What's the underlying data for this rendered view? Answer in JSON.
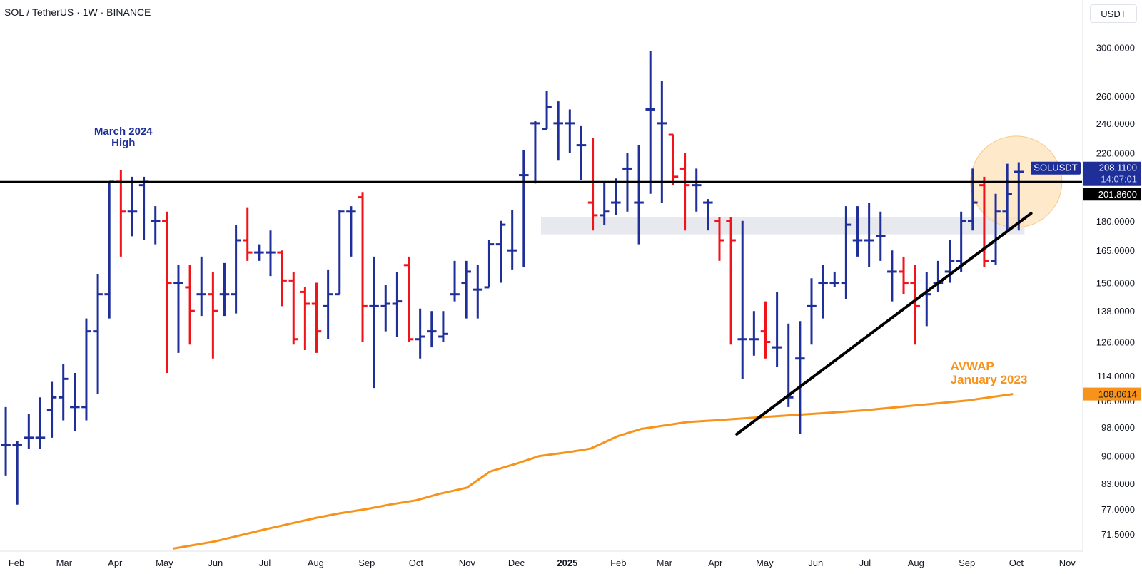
{
  "chart_data": {
    "type": "ohlc",
    "title": "SOL / TetherUS · 1W · BINANCE",
    "unit": "USDT",
    "y_scale": "log",
    "ylim": [
      68,
      320
    ],
    "xlim": [
      "2024-01-22",
      "2025-11-10"
    ],
    "y_ticks": [
      "300.0000",
      "260.0000",
      "240.0000",
      "220.0000",
      "180.0000",
      "165.0000",
      "150.0000",
      "138.0000",
      "126.0000",
      "114.0000",
      "106.0000",
      "98.0000",
      "90.0000",
      "83.0000",
      "77.0000",
      "71.5000"
    ],
    "x_ticks": [
      {
        "label": "Feb",
        "date": "2024-02-01"
      },
      {
        "label": "Mar",
        "date": "2024-03-01"
      },
      {
        "label": "Apr",
        "date": "2024-04-01"
      },
      {
        "label": "May",
        "date": "2024-05-01"
      },
      {
        "label": "Jun",
        "date": "2024-06-01"
      },
      {
        "label": "Jul",
        "date": "2024-07-01"
      },
      {
        "label": "Aug",
        "date": "2024-08-01"
      },
      {
        "label": "Sep",
        "date": "2024-09-01"
      },
      {
        "label": "Oct",
        "date": "2024-10-01"
      },
      {
        "label": "Nov",
        "date": "2024-11-01"
      },
      {
        "label": "Dec",
        "date": "2024-12-01"
      },
      {
        "label": "2025",
        "date": "2025-01-01",
        "bold": true
      },
      {
        "label": "Feb",
        "date": "2025-02-01"
      },
      {
        "label": "Mar",
        "date": "2025-03-01"
      },
      {
        "label": "Apr",
        "date": "2025-04-01"
      },
      {
        "label": "May",
        "date": "2025-05-01"
      },
      {
        "label": "Jun",
        "date": "2025-06-01"
      },
      {
        "label": "Jul",
        "date": "2025-07-01"
      },
      {
        "label": "Aug",
        "date": "2025-08-01"
      },
      {
        "label": "Sep",
        "date": "2025-09-01"
      },
      {
        "label": "Oct",
        "date": "2025-10-01"
      },
      {
        "label": "Nov",
        "date": "2025-11-01"
      }
    ],
    "colors": {
      "up": "#1f2f9a",
      "down": "#f0141a",
      "avwap": "#f7931a",
      "level": "#000000",
      "trendline": "#000000",
      "zone": "#e8e9ee",
      "highlight": "#fde2b8",
      "highlight_stroke": "#f5c98a"
    },
    "bars": [
      {
        "date": "2024-01-22",
        "o": 93,
        "h": 104,
        "l": 85,
        "c": 93
      },
      {
        "date": "2024-01-29",
        "o": 93,
        "h": 94,
        "l": 78,
        "c": 93
      },
      {
        "date": "2024-02-05",
        "o": 95,
        "h": 102,
        "l": 92,
        "c": 95
      },
      {
        "date": "2024-02-12",
        "o": 95,
        "h": 107,
        "l": 92,
        "c": 95
      },
      {
        "date": "2024-02-19",
        "o": 103,
        "h": 112,
        "l": 95,
        "c": 107
      },
      {
        "date": "2024-02-26",
        "o": 107,
        "h": 118,
        "l": 100,
        "c": 113
      },
      {
        "date": "2024-03-04",
        "o": 104,
        "h": 115,
        "l": 97,
        "c": 104
      },
      {
        "date": "2024-03-11",
        "o": 104,
        "h": 135,
        "l": 100,
        "c": 130
      },
      {
        "date": "2024-03-18",
        "o": 130,
        "h": 154,
        "l": 108,
        "c": 145
      },
      {
        "date": "2024-03-25",
        "o": 145,
        "h": 202,
        "l": 135,
        "c": 202
      },
      {
        "date": "2024-04-01",
        "o": 202,
        "h": 209,
        "l": 162,
        "c": 185
      },
      {
        "date": "2024-04-08",
        "o": 185,
        "h": 205,
        "l": 172,
        "c": 185
      },
      {
        "date": "2024-04-15",
        "o": 200,
        "h": 205,
        "l": 170,
        "c": 202
      },
      {
        "date": "2024-04-22",
        "o": 180,
        "h": 188,
        "l": 168,
        "c": 180
      },
      {
        "date": "2024-04-29",
        "o": 180,
        "h": 185,
        "l": 115,
        "c": 150
      },
      {
        "date": "2024-05-06",
        "o": 150,
        "h": 158,
        "l": 122,
        "c": 150
      },
      {
        "date": "2024-05-13",
        "o": 148,
        "h": 158,
        "l": 125,
        "c": 138
      },
      {
        "date": "2024-05-20",
        "o": 145,
        "h": 162,
        "l": 136,
        "c": 145
      },
      {
        "date": "2024-05-27",
        "o": 145,
        "h": 155,
        "l": 120,
        "c": 138
      },
      {
        "date": "2024-06-03",
        "o": 145,
        "h": 159,
        "l": 136,
        "c": 145
      },
      {
        "date": "2024-06-10",
        "o": 145,
        "h": 178,
        "l": 137,
        "c": 170
      },
      {
        "date": "2024-06-17",
        "o": 170,
        "h": 187,
        "l": 160,
        "c": 164
      },
      {
        "date": "2024-06-24",
        "o": 164,
        "h": 168,
        "l": 160,
        "c": 164
      },
      {
        "date": "2024-07-01",
        "o": 164,
        "h": 175,
        "l": 153,
        "c": 164
      },
      {
        "date": "2024-07-08",
        "o": 164,
        "h": 165,
        "l": 140,
        "c": 151
      },
      {
        "date": "2024-07-15",
        "o": 151,
        "h": 155,
        "l": 125,
        "c": 127
      },
      {
        "date": "2024-07-22",
        "o": 146,
        "h": 148,
        "l": 123,
        "c": 141
      },
      {
        "date": "2024-07-29",
        "o": 141,
        "h": 150,
        "l": 122,
        "c": 130
      },
      {
        "date": "2024-08-05",
        "o": 140,
        "h": 156,
        "l": 127,
        "c": 145
      },
      {
        "date": "2024-08-12",
        "o": 145,
        "h": 186,
        "l": 145,
        "c": 185
      },
      {
        "date": "2024-08-19",
        "o": 185,
        "h": 188,
        "l": 162,
        "c": 185
      },
      {
        "date": "2024-08-26",
        "o": 193,
        "h": 196,
        "l": 126,
        "c": 140
      },
      {
        "date": "2024-09-02",
        "o": 140,
        "h": 162,
        "l": 110,
        "c": 140
      },
      {
        "date": "2024-09-09",
        "o": 140,
        "h": 149,
        "l": 130,
        "c": 141
      },
      {
        "date": "2024-09-16",
        "o": 141,
        "h": 155,
        "l": 128,
        "c": 142
      },
      {
        "date": "2024-09-23",
        "o": 158,
        "h": 162,
        "l": 126,
        "c": 127
      },
      {
        "date": "2024-09-30",
        "o": 127,
        "h": 139,
        "l": 120,
        "c": 128
      },
      {
        "date": "2024-10-07",
        "o": 130,
        "h": 138,
        "l": 124,
        "c": 130
      },
      {
        "date": "2024-10-14",
        "o": 128,
        "h": 138,
        "l": 126,
        "c": 129
      },
      {
        "date": "2024-10-21",
        "o": 145,
        "h": 160,
        "l": 142,
        "c": 145
      },
      {
        "date": "2024-10-28",
        "o": 150,
        "h": 160,
        "l": 135,
        "c": 155
      },
      {
        "date": "2024-11-04",
        "o": 147,
        "h": 158,
        "l": 135,
        "c": 147
      },
      {
        "date": "2024-11-11",
        "o": 148,
        "h": 170,
        "l": 148,
        "c": 168
      },
      {
        "date": "2024-11-18",
        "o": 168,
        "h": 180,
        "l": 150,
        "c": 178
      },
      {
        "date": "2024-11-25",
        "o": 165,
        "h": 186,
        "l": 156,
        "c": 165
      },
      {
        "date": "2024-12-02",
        "o": 206,
        "h": 222,
        "l": 157,
        "c": 206
      },
      {
        "date": "2024-12-09",
        "o": 240,
        "h": 242,
        "l": 201,
        "c": 240
      },
      {
        "date": "2024-12-16",
        "o": 236,
        "h": 264,
        "l": 236,
        "c": 252
      },
      {
        "date": "2024-12-23",
        "o": 240,
        "h": 256,
        "l": 215,
        "c": 240
      },
      {
        "date": "2024-12-30",
        "o": 240,
        "h": 250,
        "l": 220,
        "c": 240
      },
      {
        "date": "2025-01-06",
        "o": 225,
        "h": 238,
        "l": 203,
        "c": 225
      },
      {
        "date": "2025-01-13",
        "o": 190,
        "h": 230,
        "l": 175,
        "c": 183
      },
      {
        "date": "2025-01-20",
        "o": 183,
        "h": 202,
        "l": 178,
        "c": 185
      },
      {
        "date": "2025-01-27",
        "o": 190,
        "h": 204,
        "l": 183,
        "c": 190
      },
      {
        "date": "2025-02-03",
        "o": 210,
        "h": 220,
        "l": 185,
        "c": 210
      },
      {
        "date": "2025-02-10",
        "o": 190,
        "h": 225,
        "l": 168,
        "c": 190
      },
      {
        "date": "2025-02-17",
        "o": 250,
        "h": 297,
        "l": 195,
        "c": 250
      },
      {
        "date": "2025-02-24",
        "o": 240,
        "h": 272,
        "l": 190,
        "c": 240
      },
      {
        "date": "2025-03-03",
        "o": 232,
        "h": 232,
        "l": 200,
        "c": 205
      },
      {
        "date": "2025-03-10",
        "o": 210,
        "h": 220,
        "l": 175,
        "c": 200
      },
      {
        "date": "2025-03-17",
        "o": 200,
        "h": 210,
        "l": 185,
        "c": 200
      },
      {
        "date": "2025-03-24",
        "o": 190,
        "h": 192,
        "l": 175,
        "c": 190
      },
      {
        "date": "2025-03-31",
        "o": 180,
        "h": 182,
        "l": 160,
        "c": 170
      },
      {
        "date": "2025-04-07",
        "o": 180,
        "h": 182,
        "l": 125,
        "c": 170
      },
      {
        "date": "2025-04-14",
        "o": 127,
        "h": 180,
        "l": 113,
        "c": 127
      },
      {
        "date": "2025-04-21",
        "o": 127,
        "h": 138,
        "l": 121,
        "c": 127
      },
      {
        "date": "2025-04-28",
        "o": 130,
        "h": 142,
        "l": 120,
        "c": 126
      },
      {
        "date": "2025-05-05",
        "o": 124,
        "h": 146,
        "l": 117,
        "c": 124
      },
      {
        "date": "2025-05-12",
        "o": 107,
        "h": 133,
        "l": 104,
        "c": 107
      },
      {
        "date": "2025-05-19",
        "o": 120,
        "h": 134,
        "l": 96,
        "c": 120
      },
      {
        "date": "2025-05-26",
        "o": 140,
        "h": 152,
        "l": 125,
        "c": 140
      },
      {
        "date": "2025-06-02",
        "o": 150,
        "h": 158,
        "l": 135,
        "c": 150
      },
      {
        "date": "2025-06-09",
        "o": 150,
        "h": 155,
        "l": 148,
        "c": 150
      },
      {
        "date": "2025-06-16",
        "o": 150,
        "h": 188,
        "l": 143,
        "c": 178
      },
      {
        "date": "2025-06-23",
        "o": 170,
        "h": 188,
        "l": 162,
        "c": 170
      },
      {
        "date": "2025-06-30",
        "o": 170,
        "h": 190,
        "l": 157,
        "c": 170
      },
      {
        "date": "2025-07-07",
        "o": 172,
        "h": 185,
        "l": 160,
        "c": 172
      },
      {
        "date": "2025-07-14",
        "o": 155,
        "h": 165,
        "l": 142,
        "c": 155
      },
      {
        "date": "2025-07-21",
        "o": 155,
        "h": 162,
        "l": 145,
        "c": 150
      },
      {
        "date": "2025-07-28",
        "o": 150,
        "h": 158,
        "l": 125,
        "c": 140
      },
      {
        "date": "2025-08-04",
        "o": 145,
        "h": 155,
        "l": 132,
        "c": 145
      },
      {
        "date": "2025-08-11",
        "o": 150,
        "h": 160,
        "l": 146,
        "c": 150
      },
      {
        "date": "2025-08-18",
        "o": 155,
        "h": 170,
        "l": 150,
        "c": 160
      },
      {
        "date": "2025-08-25",
        "o": 160,
        "h": 185,
        "l": 155,
        "c": 180
      },
      {
        "date": "2025-09-01",
        "o": 180,
        "h": 210,
        "l": 175,
        "c": 190
      },
      {
        "date": "2025-09-08",
        "o": 200,
        "h": 205,
        "l": 157,
        "c": 160
      },
      {
        "date": "2025-09-15",
        "o": 160,
        "h": 195,
        "l": 158,
        "c": 185
      },
      {
        "date": "2025-09-22",
        "o": 185,
        "h": 213,
        "l": 175,
        "c": 195
      },
      {
        "date": "2025-09-29",
        "o": 208,
        "h": 214,
        "l": 175,
        "c": 208
      }
    ],
    "avwap": [
      {
        "date": "2024-05-06",
        "v": 68.5
      },
      {
        "date": "2024-06-01",
        "v": 70
      },
      {
        "date": "2024-07-01",
        "v": 72.5
      },
      {
        "date": "2024-08-01",
        "v": 75
      },
      {
        "date": "2024-08-15",
        "v": 76
      },
      {
        "date": "2024-09-01",
        "v": 77
      },
      {
        "date": "2024-09-15",
        "v": 78
      },
      {
        "date": "2024-10-01",
        "v": 79
      },
      {
        "date": "2024-10-15",
        "v": 80.5
      },
      {
        "date": "2024-11-01",
        "v": 82
      },
      {
        "date": "2024-11-15",
        "v": 86
      },
      {
        "date": "2024-12-01",
        "v": 88
      },
      {
        "date": "2024-12-15",
        "v": 90
      },
      {
        "date": "2025-01-01",
        "v": 91
      },
      {
        "date": "2025-01-15",
        "v": 92
      },
      {
        "date": "2025-02-01",
        "v": 95.5
      },
      {
        "date": "2025-02-15",
        "v": 97.5
      },
      {
        "date": "2025-03-01",
        "v": 98.5
      },
      {
        "date": "2025-03-15",
        "v": 99.5
      },
      {
        "date": "2025-04-01",
        "v": 100
      },
      {
        "date": "2025-05-01",
        "v": 101
      },
      {
        "date": "2025-06-01",
        "v": 102
      },
      {
        "date": "2025-07-01",
        "v": 103
      },
      {
        "date": "2025-08-01",
        "v": 104.5
      },
      {
        "date": "2025-09-01",
        "v": 106
      },
      {
        "date": "2025-09-29",
        "v": 108.0614
      }
    ],
    "level": 201.86,
    "zone": {
      "start": "2024-12-16",
      "end": "2025-10-06",
      "low": 173,
      "high": 182
    },
    "trendline": {
      "start": {
        "date": "2025-04-14",
        "v": 96
      },
      "end": {
        "date": "2025-10-10",
        "v": 184
      }
    },
    "highlight": {
      "date": "2025-10-01",
      "v": 202
    },
    "annotations": [
      {
        "text": "March 2024\nHigh",
        "date": "2024-04-06",
        "v": 232,
        "color": "#1f2f9a"
      },
      {
        "text": "AVWAP\nJanuary 2023",
        "date": "2025-08-22",
        "v": 116,
        "color": "#f7931a"
      }
    ],
    "price_labels": [
      {
        "name": "SOLUSDT",
        "text": "208.1100",
        "countdown": "14:07:01",
        "bg": "#1f2f9a"
      },
      {
        "text": "201.8600",
        "bg": "#000000"
      },
      {
        "text": "108.0614",
        "bg": "#f7931a"
      }
    ]
  }
}
